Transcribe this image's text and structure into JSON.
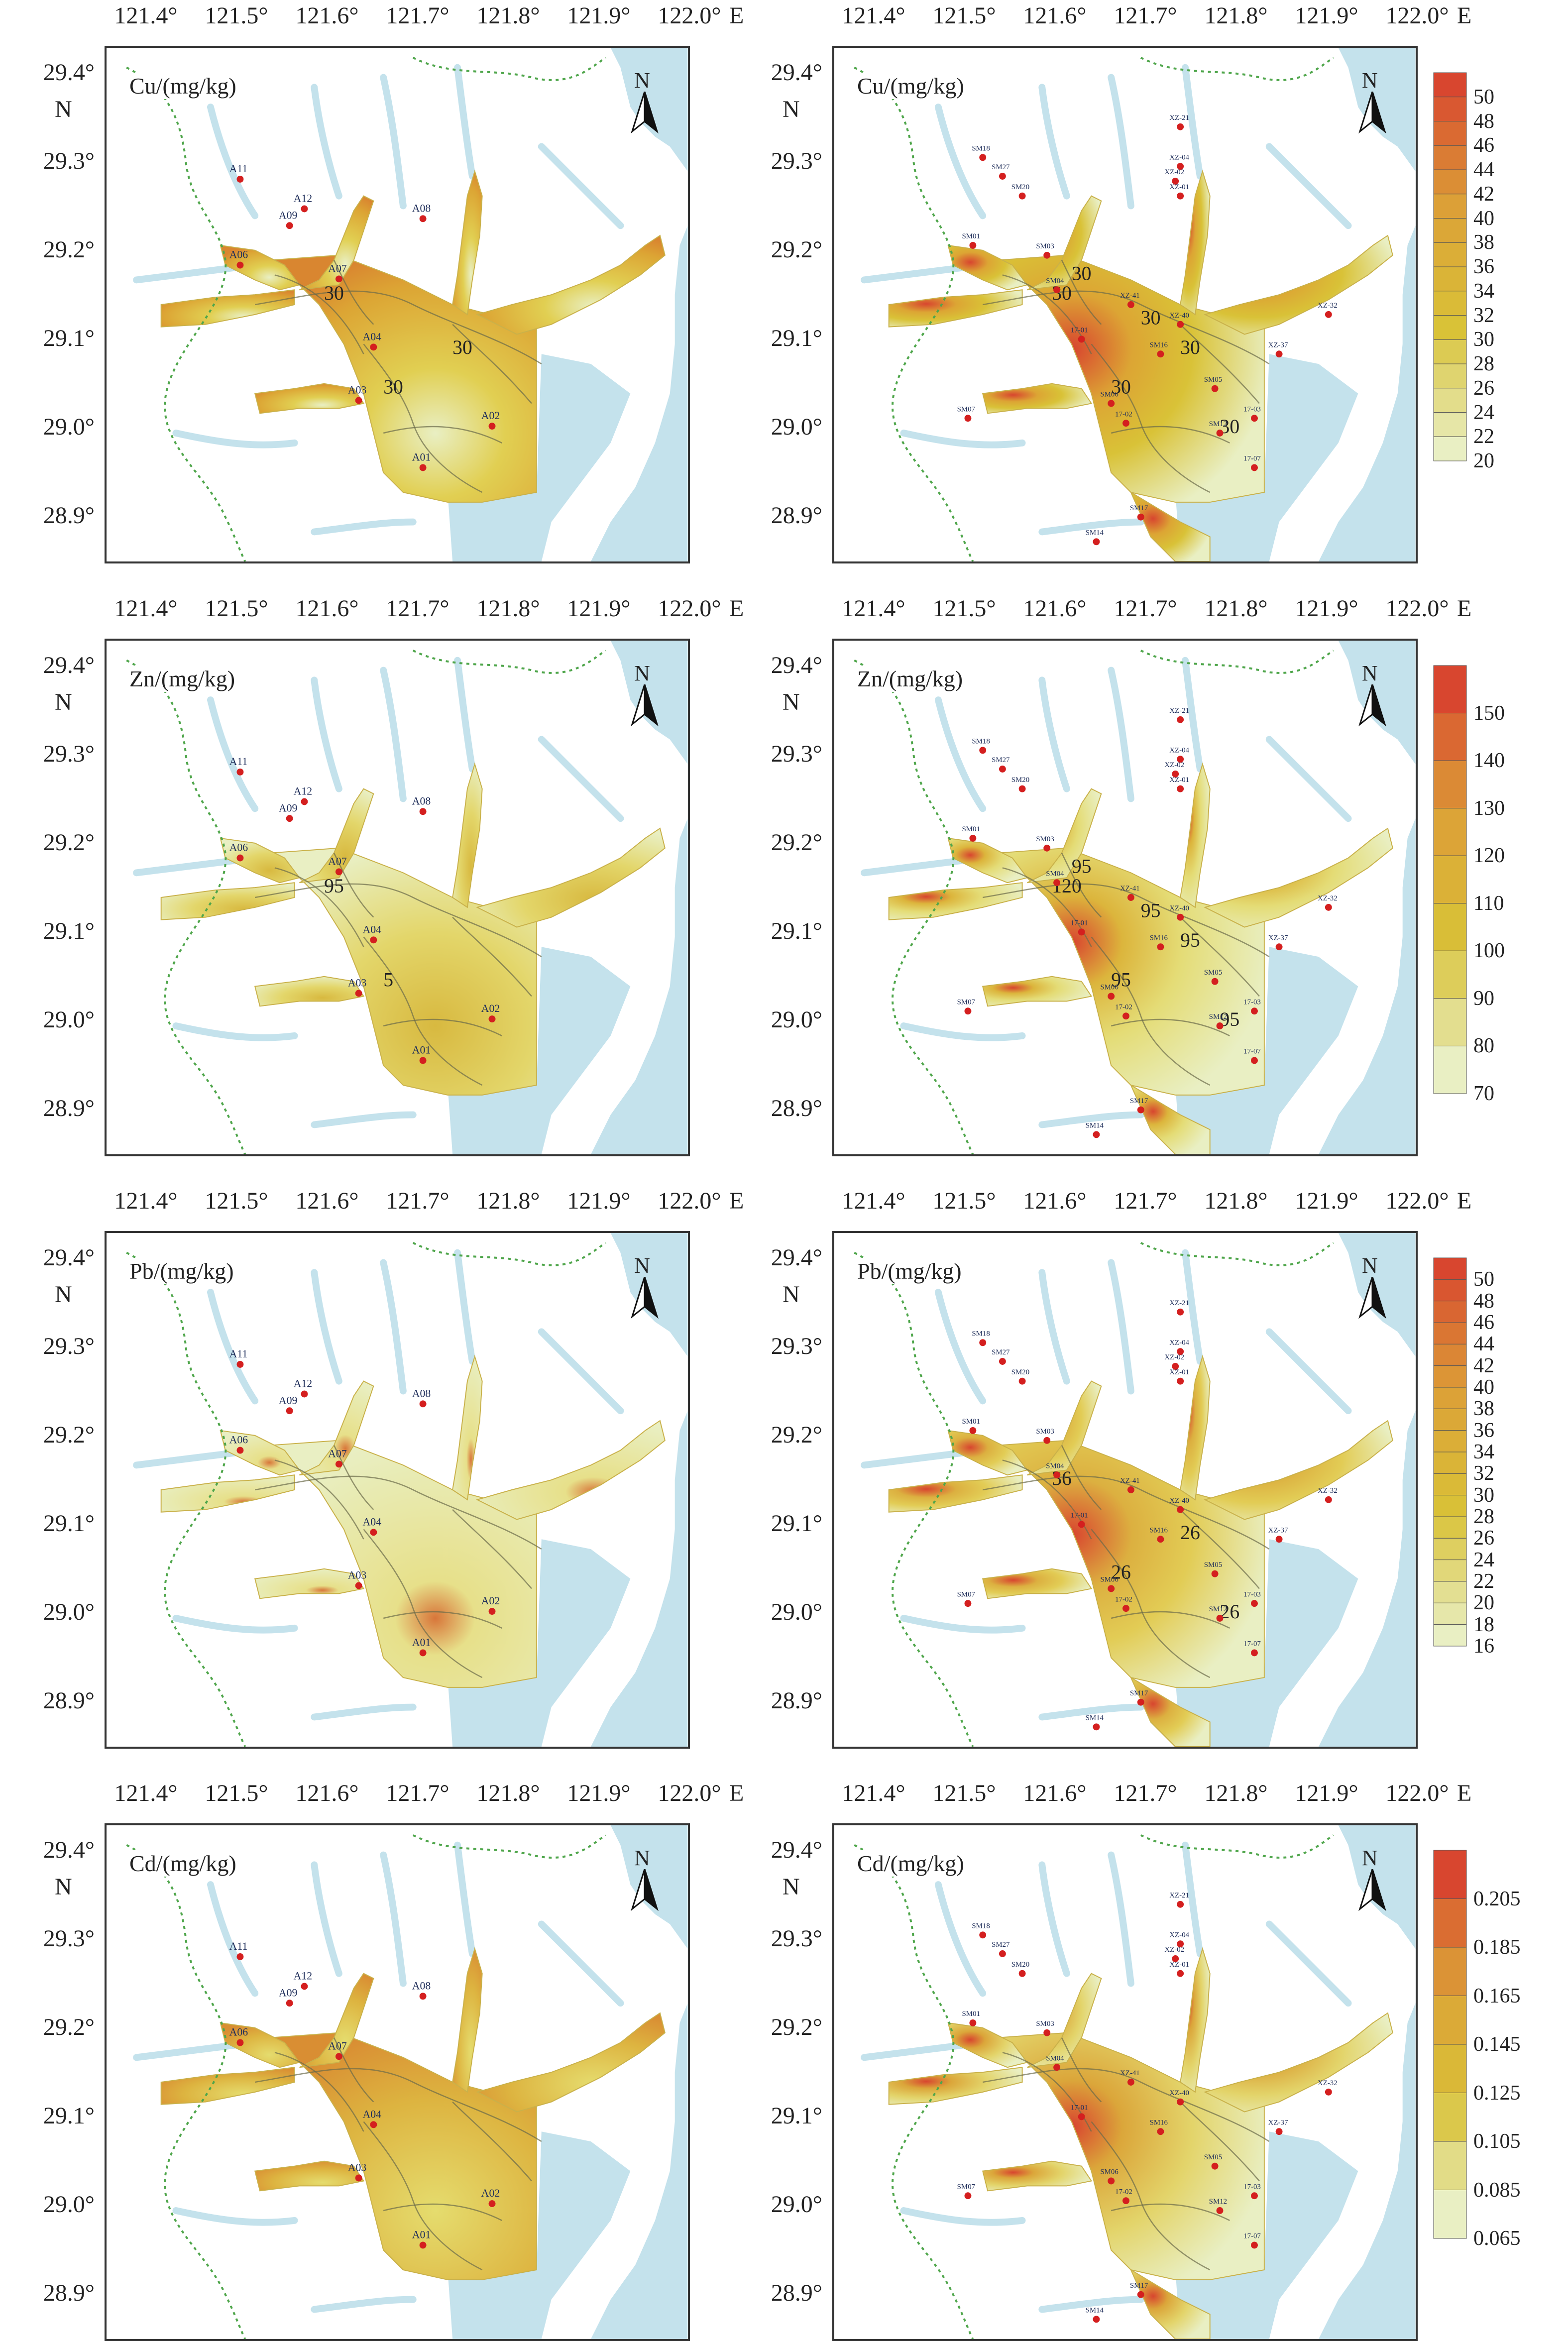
{
  "axes": {
    "x_ticks": [
      "121.4°",
      "121.5°",
      "121.6°",
      "121.7°",
      "121.8°",
      "121.9°",
      "122.0°"
    ],
    "x_unit": "E",
    "y_ticks": [
      "29.4°",
      "29.3°",
      "29.2°",
      "29.1°",
      "29.0°",
      "28.9°"
    ],
    "y_unit": "N"
  },
  "north_label": "N",
  "colors": {
    "land": "#ffffff",
    "water": "#c4e2ec",
    "low": "#e9efc3",
    "mid": "#d9c237",
    "high": "#d8462f",
    "boundary": "#4fa64b"
  },
  "panels": [
    {
      "variable": "Cu/(mg/kg)",
      "side": "left",
      "sites": [
        "A11",
        "A12",
        "A09",
        "A06",
        "A07",
        "A08",
        "A04",
        "A03",
        "A02",
        "A01"
      ],
      "contours": [
        "30",
        "30",
        "30"
      ],
      "colorbar": []
    },
    {
      "variable": "Cu/(mg/kg)",
      "side": "right",
      "sites": [
        "SM18",
        "SM27",
        "SM20",
        "SM01",
        "SM03",
        "SM04",
        "17-01",
        "SM07",
        "SM06",
        "SM16",
        "SM17",
        "SM14",
        "SM12",
        "17-02",
        "17-03",
        "17-07",
        "XZ-41",
        "XZ-40",
        "XZ-37",
        "XZ-32",
        "XZ-21",
        "XZ-04",
        "XZ-02",
        "XZ-01",
        "SM05"
      ],
      "contours": [
        "30",
        "30",
        "30",
        "30",
        "30",
        "30"
      ],
      "colorbar": [
        "50",
        "48",
        "46",
        "44",
        "42",
        "40",
        "38",
        "36",
        "34",
        "32",
        "30",
        "28",
        "26",
        "24",
        "22",
        "20"
      ]
    },
    {
      "variable": "Zn/(mg/kg)",
      "side": "left",
      "sites": [
        "A11",
        "A12",
        "A09",
        "A06",
        "A07",
        "A08",
        "A04",
        "A03",
        "A02",
        "A01"
      ],
      "contours": [
        "95",
        "5"
      ],
      "colorbar": []
    },
    {
      "variable": "Zn/(mg/kg)",
      "side": "right",
      "sites": [
        "SM18",
        "SM27",
        "SM20",
        "SM01",
        "SM03",
        "SM04",
        "17-01",
        "SM07",
        "SM06",
        "SM16",
        "SM17",
        "SM14",
        "SM12",
        "17-02",
        "17-03",
        "17-07",
        "XZ-41",
        "XZ-40",
        "XZ-37",
        "XZ-32",
        "XZ-21",
        "XZ-04",
        "XZ-02",
        "XZ-01",
        "SM05"
      ],
      "contours": [
        "120",
        "95",
        "95",
        "95",
        "95",
        "95"
      ],
      "colorbar": [
        "150",
        "140",
        "130",
        "120",
        "110",
        "100",
        "90",
        "80",
        "70"
      ]
    },
    {
      "variable": "Pb/(mg/kg)",
      "side": "left",
      "sites": [
        "A11",
        "A12",
        "A09",
        "A06",
        "A07",
        "A08",
        "A04",
        "A03",
        "A02",
        "A01"
      ],
      "contours": [],
      "colorbar": []
    },
    {
      "variable": "Pb/(mg/kg)",
      "side": "right",
      "sites": [
        "SM18",
        "SM27",
        "SM20",
        "SM01",
        "SM03",
        "SM04",
        "17-01",
        "SM07",
        "SM06",
        "SM16",
        "SM17",
        "SM14",
        "SM12",
        "17-02",
        "17-03",
        "17-07",
        "XZ-41",
        "XZ-40",
        "XZ-37",
        "XZ-32",
        "XZ-21",
        "XZ-04",
        "XZ-02",
        "XZ-01",
        "SM05"
      ],
      "contours": [
        "36",
        "26",
        "26",
        "26"
      ],
      "colorbar": [
        "50",
        "48",
        "46",
        "44",
        "42",
        "40",
        "38",
        "36",
        "34",
        "32",
        "30",
        "28",
        "26",
        "24",
        "22",
        "20",
        "18",
        "16"
      ]
    },
    {
      "variable": "Cd/(mg/kg)",
      "side": "left",
      "sites": [
        "A11",
        "A12",
        "A09",
        "A06",
        "A07",
        "A08",
        "A04",
        "A03",
        "A02",
        "A01"
      ],
      "contours": [],
      "colorbar": []
    },
    {
      "variable": "Cd/(mg/kg)",
      "side": "right",
      "sites": [
        "SM18",
        "SM27",
        "SM20",
        "SM01",
        "SM03",
        "SM04",
        "17-01",
        "SM07",
        "SM06",
        "SM16",
        "SM17",
        "SM14",
        "SM12",
        "17-02",
        "17-03",
        "17-07",
        "XZ-41",
        "XZ-40",
        "XZ-37",
        "XZ-32",
        "XZ-21",
        "XZ-04",
        "XZ-02",
        "XZ-01",
        "SM05"
      ],
      "contours": [],
      "colorbar": [
        "0.205",
        "0.185",
        "0.165",
        "0.145",
        "0.125",
        "0.105",
        "0.085",
        "0.065"
      ]
    }
  ]
}
